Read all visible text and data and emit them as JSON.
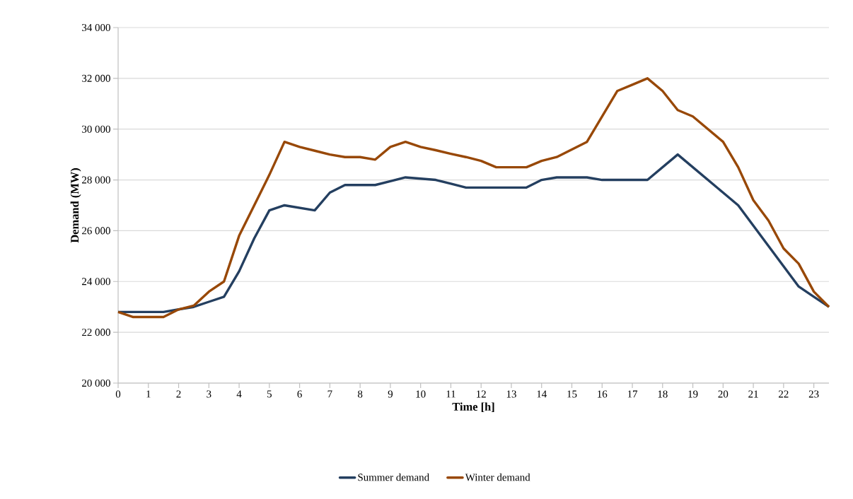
{
  "chart_data": {
    "type": "line",
    "xlabel": "Time [h]",
    "ylabel": "Demand (MW)",
    "x": [
      0,
      0.5,
      1,
      1.5,
      2,
      2.5,
      3,
      3.5,
      4,
      4.5,
      5,
      5.5,
      6,
      6.5,
      7,
      7.5,
      8,
      8.5,
      9,
      9.5,
      10,
      10.5,
      11,
      11.5,
      12,
      12.5,
      13,
      13.5,
      14,
      14.5,
      15,
      15.5,
      16,
      16.5,
      17,
      17.5,
      18,
      18.5,
      19,
      19.5,
      20,
      20.5,
      21,
      21.5,
      22,
      22.5,
      23,
      23.5
    ],
    "series": [
      {
        "name": "Summer demand",
        "color": "#243f60",
        "values": [
          22800,
          22800,
          22800,
          22800,
          22900,
          23000,
          23200,
          23400,
          24400,
          25700,
          26800,
          27000,
          26900,
          26800,
          27500,
          27800,
          27800,
          27800,
          27950,
          28100,
          28050,
          28000,
          27850,
          27700,
          27700,
          27700,
          27700,
          27700,
          28000,
          28100,
          28100,
          28100,
          28000,
          28000,
          28000,
          28000,
          28500,
          29000,
          28500,
          28000,
          27500,
          27000,
          26200,
          25400,
          24600,
          23800,
          23400,
          23000
        ]
      },
      {
        "name": "Winter demand",
        "color": "#984807",
        "values": [
          22800,
          22600,
          22600,
          22600,
          22900,
          23050,
          23600,
          24000,
          25800,
          27000,
          28200,
          29500,
          29300,
          29150,
          29000,
          28900,
          28900,
          28800,
          29300,
          29500,
          29300,
          29170,
          29030,
          28900,
          28750,
          28500,
          28500,
          28500,
          28750,
          28900,
          29200,
          29500,
          30500,
          31500,
          31750,
          32000,
          31500,
          30750,
          30500,
          30000,
          29500,
          28500,
          27200,
          26400,
          25300,
          24700,
          23600,
          23000
        ]
      }
    ],
    "xlim": [
      0,
      23.5
    ],
    "xticks": [
      0,
      1,
      2,
      3,
      4,
      5,
      6,
      7,
      8,
      9,
      10,
      11,
      12,
      13,
      14,
      15,
      16,
      17,
      18,
      19,
      20,
      21,
      22,
      23
    ],
    "ylim": [
      20000,
      34000
    ],
    "yticks": [
      {
        "value": 20000,
        "label": "20 000"
      },
      {
        "value": 22000,
        "label": "22 000"
      },
      {
        "value": 24000,
        "label": "24 000"
      },
      {
        "value": 26000,
        "label": "26 000"
      },
      {
        "value": 28000,
        "label": "28 000"
      },
      {
        "value": 30000,
        "label": "30 000"
      },
      {
        "value": 32000,
        "label": "32 000"
      },
      {
        "value": 34000,
        "label": "34 000"
      }
    ],
    "grid": "y",
    "legend": "bottom"
  }
}
